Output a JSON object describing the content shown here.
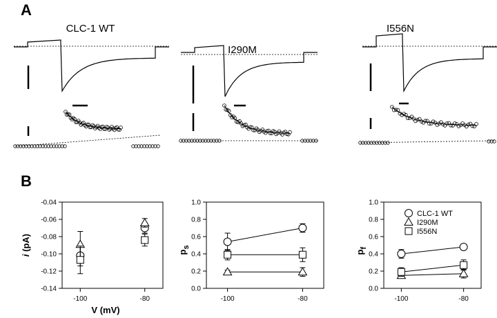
{
  "panel_a": {
    "letter": "A",
    "traces": [
      {
        "title": "CLC-1 WT"
      },
      {
        "title": "I290M"
      },
      {
        "title": "I556N"
      }
    ]
  },
  "panel_b": {
    "letter": "B",
    "xlabel": "V (mV)"
  },
  "chart_data": [
    {
      "type": "scatter",
      "title": "",
      "ylabel": "i (pA)",
      "xlabel": "V (mV)",
      "x_ticks": [
        -100,
        -80
      ],
      "ylim": [
        -0.14,
        -0.04
      ],
      "y_ticks": [
        -0.04,
        -0.06,
        -0.08,
        -0.1,
        -0.12,
        -0.14
      ],
      "y_tick_labels": [
        "-0.04",
        "-0.06",
        "-0.08",
        "-0.10",
        "-0.12",
        "-0.14"
      ],
      "grid": false,
      "series": [
        {
          "name": "CLC-1 WT",
          "marker": "circle",
          "connect": false,
          "points": [
            {
              "x": -100,
              "y": -0.102,
              "err": 0.012
            },
            {
              "x": -80,
              "y": -0.07,
              "err": 0.006
            }
          ]
        },
        {
          "name": "I290M",
          "marker": "triangle",
          "connect": false,
          "points": [
            {
              "x": -100,
              "y": -0.089,
              "err": 0.015
            },
            {
              "x": -80,
              "y": -0.064,
              "err": 0.005
            }
          ]
        },
        {
          "name": "I556N",
          "marker": "square",
          "connect": false,
          "points": [
            {
              "x": -100,
              "y": -0.107,
              "err": 0.016
            },
            {
              "x": -80,
              "y": -0.084,
              "err": 0.007
            }
          ]
        }
      ]
    },
    {
      "type": "line",
      "title": "",
      "ylabel": "ps",
      "ylabel_main": "p",
      "ylabel_sub": "s",
      "x_ticks": [
        -100,
        -80
      ],
      "ylim": [
        0,
        1
      ],
      "y_ticks": [
        0,
        0.2,
        0.4,
        0.6,
        0.8,
        1.0
      ],
      "y_tick_labels": [
        "0.0",
        "0.2",
        "0.4",
        "0.6",
        "0.8",
        "1.0"
      ],
      "grid": false,
      "series": [
        {
          "name": "CLC-1 WT",
          "marker": "circle",
          "connect": true,
          "points": [
            {
              "x": -100,
              "y": 0.54,
              "err": 0.1
            },
            {
              "x": -80,
              "y": 0.7,
              "err": 0.05
            }
          ]
        },
        {
          "name": "I290M",
          "marker": "triangle",
          "connect": true,
          "points": [
            {
              "x": -100,
              "y": 0.19,
              "err": 0.02
            },
            {
              "x": -80,
              "y": 0.19,
              "err": 0.05
            }
          ]
        },
        {
          "name": "I556N",
          "marker": "square",
          "connect": true,
          "points": [
            {
              "x": -100,
              "y": 0.39,
              "err": 0.06
            },
            {
              "x": -80,
              "y": 0.39,
              "err": 0.08
            }
          ]
        }
      ]
    },
    {
      "type": "line",
      "title": "",
      "ylabel": "pf",
      "ylabel_main": "p",
      "ylabel_sub": "f",
      "x_ticks": [
        -100,
        -80
      ],
      "ylim": [
        0,
        1
      ],
      "y_ticks": [
        0,
        0.2,
        0.4,
        0.6,
        0.8,
        1.0
      ],
      "y_tick_labels": [
        "0.0",
        "0.2",
        "0.4",
        "0.6",
        "0.8",
        "1.0"
      ],
      "grid": false,
      "legend": {
        "placement": "top-right",
        "entries": [
          {
            "label": "CLC-1 WT",
            "marker": "circle"
          },
          {
            "label": "I290M",
            "marker": "triangle"
          },
          {
            "label": "I556N",
            "marker": "square"
          }
        ]
      },
      "series": [
        {
          "name": "CLC-1 WT",
          "marker": "circle",
          "connect": true,
          "points": [
            {
              "x": -100,
              "y": 0.4,
              "err": 0.05
            },
            {
              "x": -80,
              "y": 0.48,
              "err": 0.03
            }
          ]
        },
        {
          "name": "I290M",
          "marker": "triangle",
          "connect": true,
          "points": [
            {
              "x": -100,
              "y": 0.15,
              "err": 0.02
            },
            {
              "x": -80,
              "y": 0.17,
              "err": 0.05
            }
          ]
        },
        {
          "name": "I556N",
          "marker": "square",
          "connect": true,
          "points": [
            {
              "x": -100,
              "y": 0.19,
              "err": 0.05
            },
            {
              "x": -80,
              "y": 0.27,
              "err": 0.06
            }
          ]
        }
      ]
    }
  ]
}
